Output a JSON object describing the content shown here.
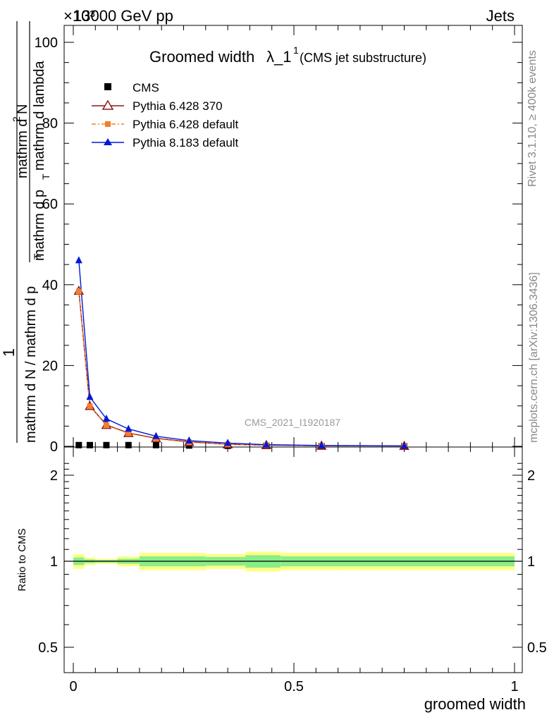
{
  "header": {
    "left": "13000 GeV pp",
    "right": "Jets",
    "exponent": "×10³"
  },
  "side_labels": {
    "rivet": "Rivet 3.1.10, ≥ 400k events",
    "mcplots": "mcplots.cern.ch [arXiv:1306.3436]"
  },
  "watermark": "CMS_2021_I1920187",
  "ylabel": {
    "prefix": "1",
    "denominator": "mathrm d N / mathrm d p",
    "denominator_sub": "T",
    "numerator": "mathrm d",
    "numerator_sup": "2",
    "numerator_end": "N",
    "denominator2": "mathrm d p",
    "denominator2_sub": "T",
    "denominator2_end": " mathrm d lambda"
  },
  "colors": {
    "p6_370": "#8b1a1a",
    "p6_default": "#f08030",
    "p8": "#0018d8",
    "band_outer": "#ffff88",
    "band_inner": "#88ee88"
  },
  "chart_data": [
    {
      "type": "line",
      "title": "Groomed width",
      "title_math": "λ_1",
      "title_sup": "1",
      "title_note": "(CMS jet substructure)",
      "xlabel": "groomed width",
      "ylabel": "1 / (mathrm d N / mathrm d p_T) · mathrm d²N / (mathrm d p_T mathrm d lambda)",
      "xlim": [
        0,
        1
      ],
      "ylim": [
        0,
        100
      ],
      "y_scale_note": "×10³",
      "yticks": [
        0,
        20,
        40,
        60,
        80,
        100
      ],
      "xticks": [
        0,
        0.5,
        1
      ],
      "x": [
        0.0125,
        0.0375,
        0.075,
        0.125,
        0.1875,
        0.2625,
        0.35,
        0.4375,
        0.5625,
        0.75
      ],
      "legend": [
        "CMS",
        "Pythia 6.428 370",
        "Pythia 6.428 default",
        "Pythia 8.183 default"
      ],
      "series": [
        {
          "name": "CMS",
          "values": [
            0.3,
            0.3,
            0.3,
            0.3,
            0.3,
            0.2,
            0.1,
            0.1,
            0.05,
            0.02
          ]
        },
        {
          "name": "Pythia 6.428 370",
          "values": [
            38.5,
            10.0,
            5.3,
            3.3,
            2.0,
            1.1,
            0.5,
            0.3,
            0.15,
            0.1
          ]
        },
        {
          "name": "Pythia 6.428 default",
          "values": [
            38.3,
            9.9,
            5.2,
            3.2,
            1.9,
            1.0,
            0.5,
            0.3,
            0.15,
            0.1
          ]
        },
        {
          "name": "Pythia 8.183 default",
          "values": [
            46.0,
            12.2,
            6.8,
            4.3,
            2.5,
            1.4,
            0.8,
            0.4,
            0.2,
            0.1
          ]
        }
      ]
    },
    {
      "type": "line",
      "ylabel": "Ratio to CMS",
      "xlabel": "groomed width",
      "xlim": [
        0,
        1
      ],
      "ylim": [
        0.4,
        2.3
      ],
      "yticks": [
        0.5,
        1,
        2
      ],
      "ytick_labels": [
        "0.5",
        "1",
        "2"
      ],
      "xticks": [
        0,
        0.5,
        1
      ],
      "xtick_labels": [
        "0",
        "0.5",
        "1"
      ],
      "bin_edges": [
        0,
        0.025,
        0.05,
        0.1,
        0.15,
        0.3,
        0.39,
        0.47,
        0.6,
        1.0
      ],
      "band_outer": [
        0.06,
        0.03,
        0.02,
        0.04,
        0.07,
        0.06,
        0.08,
        0.07,
        0.07
      ],
      "band_inner": [
        0.03,
        0.015,
        0.01,
        0.02,
        0.04,
        0.035,
        0.05,
        0.04,
        0.04
      ],
      "ratio_line": 1
    }
  ]
}
